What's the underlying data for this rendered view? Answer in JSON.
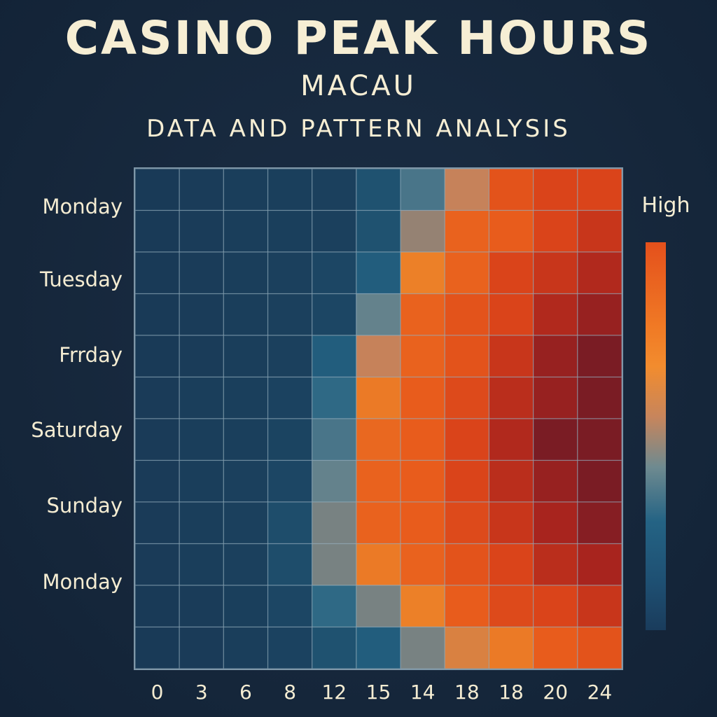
{
  "header": {
    "title": "CASINO PEAK HOURS",
    "subtitle": "MACAU",
    "subtitle2": "DATA AND PATTERN ANALYSIS"
  },
  "legend": {
    "high_label": "High",
    "colors": [
      "#e4501c",
      "#f28c2e",
      "#c7855c",
      "#6e8a90",
      "#246384",
      "#1a3c5c"
    ]
  },
  "chart_data": {
    "type": "heatmap",
    "title": "CASINO PEAK HOURS",
    "subtitle": "MACAU",
    "x_tick_labels": [
      "0",
      "3",
      "6",
      "8",
      "12",
      "15",
      "14",
      "18",
      "18",
      "20",
      "24"
    ],
    "y_tick_labels": [
      "Monday",
      "Tuesday",
      "Frrday",
      "Saturday",
      "Sunday",
      "Monday"
    ],
    "rows": 12,
    "columns": 11,
    "colorscale": "low = dark blue, high = orange / dark red",
    "legend_label": "High",
    "values": [
      [
        0.05,
        0.07,
        0.08,
        0.09,
        0.1,
        0.2,
        0.35,
        0.5,
        0.75,
        0.8,
        0.8
      ],
      [
        0.05,
        0.07,
        0.08,
        0.09,
        0.1,
        0.2,
        0.45,
        0.7,
        0.72,
        0.8,
        0.85
      ],
      [
        0.05,
        0.07,
        0.08,
        0.1,
        0.15,
        0.25,
        0.6,
        0.7,
        0.8,
        0.85,
        0.9
      ],
      [
        0.05,
        0.07,
        0.08,
        0.1,
        0.15,
        0.4,
        0.7,
        0.75,
        0.8,
        0.9,
        0.95
      ],
      [
        0.05,
        0.07,
        0.08,
        0.1,
        0.25,
        0.5,
        0.7,
        0.75,
        0.85,
        0.95,
        1.0
      ],
      [
        0.06,
        0.08,
        0.09,
        0.12,
        0.3,
        0.62,
        0.72,
        0.78,
        0.88,
        0.95,
        1.0
      ],
      [
        0.06,
        0.08,
        0.09,
        0.13,
        0.35,
        0.68,
        0.72,
        0.8,
        0.9,
        1.0,
        1.0
      ],
      [
        0.06,
        0.08,
        0.1,
        0.15,
        0.4,
        0.7,
        0.72,
        0.8,
        0.88,
        0.95,
        1.0
      ],
      [
        0.06,
        0.08,
        0.1,
        0.18,
        0.42,
        0.7,
        0.72,
        0.78,
        0.85,
        0.92,
        0.98
      ],
      [
        0.06,
        0.08,
        0.1,
        0.18,
        0.42,
        0.62,
        0.7,
        0.75,
        0.8,
        0.88,
        0.92
      ],
      [
        0.05,
        0.07,
        0.09,
        0.15,
        0.3,
        0.42,
        0.6,
        0.72,
        0.78,
        0.8,
        0.85
      ],
      [
        0.05,
        0.06,
        0.08,
        0.12,
        0.2,
        0.25,
        0.42,
        0.55,
        0.62,
        0.72,
        0.75
      ]
    ]
  }
}
